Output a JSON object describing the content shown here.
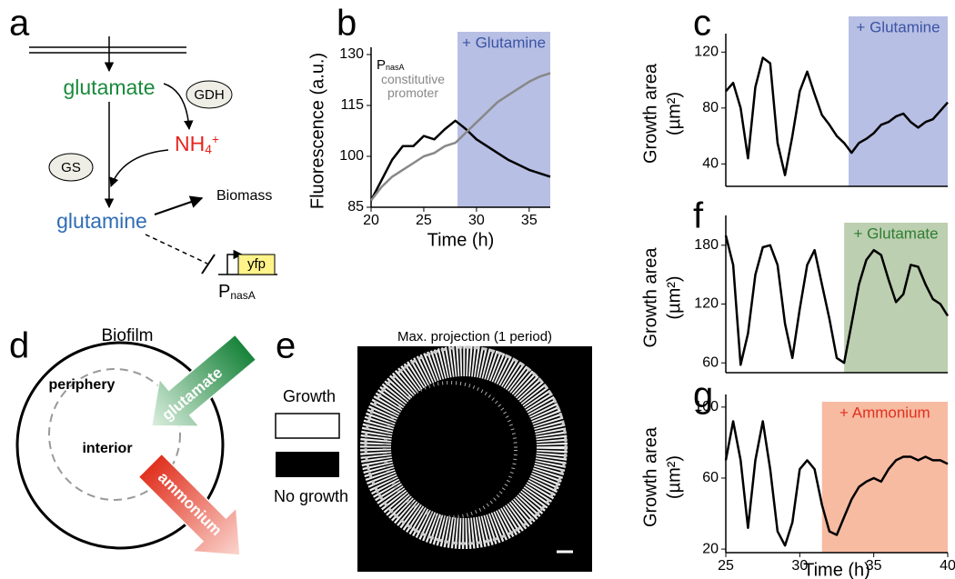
{
  "diagram_a": {
    "panel_label": "a",
    "glutamate": "glutamate",
    "gdh": "GDH",
    "nh4": "NH4+",
    "gs": "GS",
    "glutamine": "glutamine",
    "biomass": "Biomass",
    "reporter": "yfp",
    "promoter": "PnasA"
  },
  "diagram_d": {
    "panel_label": "d",
    "title": "Biofilm",
    "periphery": "periphery",
    "interior": "interior",
    "inflow": "glutamate",
    "outflow": "ammonium"
  },
  "image_e": {
    "panel_label": "e",
    "title": "Max. projection (1 period)",
    "legend": [
      "Growth",
      "No growth"
    ]
  },
  "chart_data": [
    {
      "type": "line",
      "panel_label": "b",
      "xlabel": "Time (h)",
      "ylabel": "Fluorescence (a.u.)",
      "x": [
        20,
        21,
        22,
        23,
        24,
        25,
        26,
        27,
        28,
        29,
        30,
        31,
        32,
        33,
        34,
        35,
        36,
        37
      ],
      "series": [
        {
          "name": "PnasA",
          "color": "#000000",
          "values": [
            87,
            93,
            99,
            103,
            103,
            106,
            105,
            108,
            110.5,
            108,
            105,
            103,
            101,
            99,
            97.5,
            96,
            95,
            94
          ]
        },
        {
          "name": "constitutive promoter",
          "color": "#888888",
          "values": [
            87,
            91,
            94,
            96,
            98,
            100,
            101,
            103,
            104,
            107,
            110,
            113,
            116,
            118,
            120,
            122,
            123.5,
            124.5
          ]
        }
      ],
      "xlim": [
        20,
        37
      ],
      "xticks": [
        20,
        25,
        30,
        35
      ],
      "ylim": [
        85,
        130
      ],
      "yticks": [
        85,
        100,
        115,
        130
      ],
      "highlight": {
        "start": 28.2,
        "end": 37,
        "label": "+ Glutamine",
        "color": "#b3bce3",
        "label_color": "#3a53a4"
      }
    },
    {
      "type": "line",
      "panel_label": "c",
      "ylabel": [
        "Growth area",
        "(µm²)"
      ],
      "x": [
        25,
        25.5,
        26,
        26.5,
        27,
        27.5,
        28,
        28.5,
        29,
        29.5,
        30,
        30.5,
        31,
        31.5,
        32,
        32.5,
        33,
        33.5,
        34,
        34.5,
        35,
        35.5,
        36,
        36.5,
        37,
        37.5,
        38,
        38.5,
        39,
        39.5,
        40
      ],
      "values": [
        92,
        98,
        80,
        44,
        95,
        116,
        112,
        55,
        32,
        60,
        92,
        106,
        90,
        75,
        68,
        60,
        55,
        48,
        55,
        58,
        62,
        68,
        70,
        74,
        76,
        70,
        66,
        70,
        72,
        78,
        84
      ],
      "color": "#000000",
      "xlim": [
        25,
        40
      ],
      "ylim": [
        24,
        128
      ],
      "yticks": [
        40,
        80,
        120
      ],
      "highlight": {
        "start": 33.3,
        "end": 40,
        "label": "+ Glutamine",
        "color": "#b3bce3",
        "label_color": "#3a53a4"
      }
    },
    {
      "type": "line",
      "panel_label": "f",
      "ylabel": [
        "Growth area",
        "(µm²)"
      ],
      "x": [
        25,
        25.5,
        26,
        26.5,
        27,
        27.5,
        28,
        28.5,
        29,
        29.5,
        30,
        30.5,
        31,
        31.5,
        32,
        32.5,
        33,
        33.5,
        34,
        34.5,
        35,
        35.5,
        36,
        36.5,
        37,
        37.5,
        38,
        38.5,
        39,
        39.5,
        40
      ],
      "values": [
        190,
        160,
        58,
        90,
        150,
        178,
        180,
        160,
        100,
        65,
        115,
        160,
        175,
        140,
        105,
        65,
        60,
        100,
        140,
        165,
        175,
        170,
        145,
        122,
        130,
        160,
        158,
        140,
        125,
        120,
        108
      ],
      "color": "#000000",
      "xlim": [
        25,
        40
      ],
      "ylim": [
        50,
        203
      ],
      "yticks": [
        60,
        120,
        180
      ],
      "highlight": {
        "start": 33,
        "end": 40,
        "label": "+ Glutamate",
        "color": "#b8ccac",
        "label_color": "#2e7d32"
      }
    },
    {
      "type": "line",
      "panel_label": "g",
      "xlabel": "Time (h)",
      "ylabel": [
        "Growth area",
        "(µm²)"
      ],
      "x": [
        25,
        25.5,
        26,
        26.5,
        27,
        27.5,
        28,
        28.5,
        29,
        29.5,
        30,
        30.5,
        31,
        31.5,
        32,
        32.5,
        33,
        33.5,
        34,
        34.5,
        35,
        35.5,
        36,
        36.5,
        37,
        37.5,
        38,
        38.5,
        39,
        39.5,
        40
      ],
      "values": [
        70,
        92,
        70,
        32,
        70,
        92,
        65,
        30,
        22,
        35,
        65,
        70,
        65,
        45,
        30,
        28,
        38,
        48,
        55,
        58,
        60,
        58,
        65,
        70,
        72,
        72,
        70,
        72,
        70,
        70,
        68
      ],
      "color": "#000000",
      "xlim": [
        25,
        40
      ],
      "xticks": [
        25,
        30,
        35,
        40
      ],
      "ylim": [
        18,
        103
      ],
      "yticks": [
        20,
        60,
        100
      ],
      "highlight": {
        "start": 31.5,
        "end": 40,
        "label": "+ Ammonium",
        "color": "#f7b79d",
        "label_color": "#e0301e"
      }
    }
  ]
}
